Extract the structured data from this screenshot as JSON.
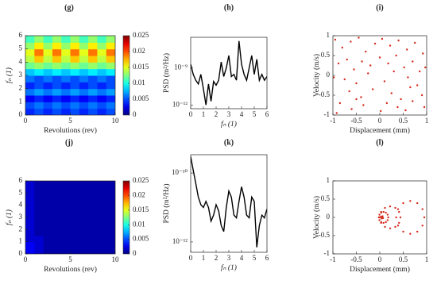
{
  "chart_data": [
    {
      "type": "heatmap",
      "title": "(g)",
      "xlabel": "Revolutions (rev)",
      "ylabel": "fₙ (1)",
      "xlim": [
        0,
        10
      ],
      "xticks": [
        0,
        5,
        10
      ],
      "ylim": [
        0,
        6
      ],
      "yticks": [
        0,
        1,
        2,
        3,
        4,
        5,
        6
      ],
      "x": [
        0.5,
        1.5,
        2.5,
        3.5,
        4.5,
        5.5,
        6.5,
        7.5,
        8.5,
        9.5
      ],
      "y": [
        0.25,
        0.75,
        1.25,
        1.75,
        2.25,
        2.75,
        3.25,
        3.75,
        4.25,
        4.75,
        5.25,
        5.75
      ],
      "z": [
        [
          0.004,
          0.005,
          0.004,
          0.005,
          0.004,
          0.005,
          0.004,
          0.005,
          0.004,
          0.005
        ],
        [
          0.005,
          0.006,
          0.005,
          0.006,
          0.005,
          0.006,
          0.005,
          0.006,
          0.005,
          0.006
        ],
        [
          0.003,
          0.004,
          0.003,
          0.004,
          0.003,
          0.004,
          0.003,
          0.004,
          0.003,
          0.004
        ],
        [
          0.006,
          0.007,
          0.006,
          0.007,
          0.006,
          0.007,
          0.006,
          0.007,
          0.006,
          0.007
        ],
        [
          0.004,
          0.005,
          0.004,
          0.005,
          0.004,
          0.005,
          0.004,
          0.005,
          0.004,
          0.005
        ],
        [
          0.006,
          0.005,
          0.006,
          0.005,
          0.006,
          0.005,
          0.006,
          0.005,
          0.006,
          0.005
        ],
        [
          0.008,
          0.009,
          0.008,
          0.009,
          0.008,
          0.009,
          0.008,
          0.009,
          0.008,
          0.009
        ],
        [
          0.012,
          0.013,
          0.012,
          0.013,
          0.012,
          0.013,
          0.012,
          0.013,
          0.012,
          0.013
        ],
        [
          0.014,
          0.017,
          0.014,
          0.017,
          0.014,
          0.017,
          0.014,
          0.017,
          0.014,
          0.017
        ],
        [
          0.015,
          0.019,
          0.015,
          0.019,
          0.015,
          0.019,
          0.015,
          0.019,
          0.015,
          0.019
        ],
        [
          0.013,
          0.016,
          0.013,
          0.016,
          0.013,
          0.016,
          0.013,
          0.016,
          0.013,
          0.016
        ],
        [
          0.011,
          0.013,
          0.011,
          0.013,
          0.011,
          0.013,
          0.011,
          0.013,
          0.011,
          0.013
        ]
      ],
      "clim": [
        0,
        0.025
      ],
      "cticks": [
        0,
        0.005,
        0.01,
        0.015,
        0.02,
        0.025
      ]
    },
    {
      "type": "line",
      "title": "(h)",
      "xlabel": "fₙ (1)",
      "ylabel": "PSD (m²/Hz)",
      "log_y": true,
      "color": "#000000",
      "xlim": [
        0,
        6
      ],
      "xticks": [
        0,
        1,
        2,
        3,
        4,
        5,
        6
      ],
      "ylim": [
        5e-13,
        3e-07
      ],
      "yticks": [
        {
          "value": 1e-12,
          "label": "10⁻¹²"
        },
        {
          "value": 1e-09,
          "label": "10⁻⁹"
        }
      ],
      "x": [
        0,
        0.2,
        0.4,
        0.6,
        0.8,
        1,
        1.2,
        1.4,
        1.6,
        1.8,
        2,
        2.2,
        2.4,
        2.6,
        2.8,
        3,
        3.2,
        3.4,
        3.6,
        3.8,
        4,
        4.2,
        4.4,
        4.6,
        4.8,
        5,
        5.2,
        5.4,
        5.6,
        5.8,
        6
      ],
      "values": [
        2e-09,
        3e-10,
        1e-10,
        5e-11,
        3e-10,
        2e-11,
        1e-12,
        5e-11,
        2e-12,
        8e-11,
        4e-11,
        1e-10,
        3e-09,
        2e-10,
        1e-09,
        1e-08,
        2e-10,
        3e-10,
        1e-10,
        1.5e-07,
        2e-09,
        3e-10,
        1e-10,
        1e-09,
        1e-08,
        3e-10,
        5e-09,
        1e-10,
        3e-10,
        1e-10,
        2e-10
      ]
    },
    {
      "type": "scatter",
      "title": "(i)",
      "xlabel": "Displacement (mm)",
      "ylabel": "Velocity (m/s)",
      "color": "#d62a1e",
      "xlim": [
        -1,
        1
      ],
      "xticks": [
        -1,
        -0.5,
        0,
        0.5,
        1
      ],
      "ylim": [
        -1,
        1
      ],
      "yticks": [
        -1,
        -0.5,
        0,
        0.5,
        1
      ],
      "x": [
        -0.95,
        -0.8,
        -0.62,
        -0.45,
        -0.3,
        -0.1,
        0.05,
        0.22,
        0.4,
        0.58,
        0.75,
        0.92,
        -0.88,
        -0.7,
        -0.55,
        -0.38,
        -0.2,
        0,
        0.18,
        0.35,
        0.52,
        0.7,
        0.85,
        -0.98,
        -0.75,
        -0.5,
        -0.25,
        0.1,
        0.3,
        0.6,
        0.8,
        0.97,
        -0.65,
        -0.4,
        -0.15,
        0.25,
        0.45,
        0.65,
        0.9,
        -0.85,
        -0.6,
        -0.35,
        0.02,
        0.38,
        0.7,
        -0.92,
        -0.5,
        0.15,
        0.55,
        0.95
      ],
      "y": [
        0.9,
        0.7,
        0.85,
        0.95,
        0.6,
        0.8,
        0.92,
        0.75,
        0.88,
        0.65,
        0.82,
        0.55,
        0.3,
        0.4,
        0.15,
        0.35,
        0.25,
        0.45,
        0.3,
        0.5,
        0.2,
        0.35,
        0.1,
        -0.05,
        -0.1,
        -0.2,
        0.05,
        -0.15,
        0.1,
        -0.05,
        -0.25,
        0.2,
        -0.4,
        -0.55,
        -0.35,
        -0.45,
        -0.6,
        -0.3,
        -0.5,
        -0.7,
        -0.85,
        -0.75,
        -0.9,
        -0.8,
        -0.65,
        -0.95,
        -0.6,
        -0.7,
        -0.88,
        -0.8
      ]
    },
    {
      "type": "heatmap",
      "title": "(j)",
      "xlabel": "Revolutions (rev)",
      "ylabel": "fₙ (1)",
      "xlim": [
        0,
        10
      ],
      "xticks": [
        0,
        5,
        10
      ],
      "ylim": [
        0,
        6
      ],
      "yticks": [
        0,
        1,
        2,
        3,
        4,
        5,
        6
      ],
      "x": [
        0.5,
        1.5,
        2.5,
        3.5,
        4.5,
        5.5,
        6.5,
        7.5,
        8.5,
        9.5
      ],
      "y": [
        0.25,
        0.75,
        1.25,
        1.75,
        2.25,
        2.75,
        3.25,
        3.75,
        4.25,
        4.75,
        5.25,
        5.75
      ],
      "z": [
        [
          0.003,
          0.002,
          0.001,
          0.001,
          0.001,
          0.001,
          0.001,
          0.001,
          0.001,
          0.001
        ],
        [
          0.003,
          0.002,
          0.001,
          0.001,
          0.001,
          0.001,
          0.001,
          0.001,
          0.001,
          0.001
        ],
        [
          0.002,
          0.002,
          0.001,
          0.001,
          0.001,
          0.001,
          0.001,
          0.001,
          0.001,
          0.001
        ],
        [
          0.002,
          0.001,
          0.001,
          0.001,
          0.001,
          0.001,
          0.001,
          0.001,
          0.001,
          0.001
        ],
        [
          0.002,
          0.001,
          0.001,
          0.001,
          0.001,
          0.001,
          0.001,
          0.001,
          0.001,
          0.001
        ],
        [
          0.002,
          0.001,
          0.001,
          0.001,
          0.001,
          0.001,
          0.001,
          0.001,
          0.001,
          0.001
        ],
        [
          0.002,
          0.001,
          0.001,
          0.001,
          0.001,
          0.001,
          0.001,
          0.001,
          0.001,
          0.001
        ],
        [
          0.002,
          0.001,
          0.001,
          0.001,
          0.001,
          0.001,
          0.001,
          0.001,
          0.001,
          0.001
        ],
        [
          0.002,
          0.001,
          0.001,
          0.001,
          0.001,
          0.001,
          0.001,
          0.001,
          0.001,
          0.001
        ],
        [
          0.002,
          0.001,
          0.001,
          0.001,
          0.001,
          0.001,
          0.001,
          0.001,
          0.001,
          0.001
        ],
        [
          0.002,
          0.001,
          0.001,
          0.001,
          0.001,
          0.001,
          0.001,
          0.001,
          0.001,
          0.001
        ],
        [
          0.002,
          0.001,
          0.001,
          0.001,
          0.001,
          0.001,
          0.001,
          0.001,
          0.001,
          0.001
        ]
      ],
      "clim": [
        0,
        0.025
      ],
      "cticks": [
        0,
        0.005,
        0.01,
        0.015,
        0.02,
        0.025
      ]
    },
    {
      "type": "line",
      "title": "(k)",
      "xlabel": "fₙ (1)",
      "ylabel": "PSD (m²/Hz)",
      "log_y": true,
      "color": "#000000",
      "xlim": [
        0,
        6
      ],
      "xticks": [
        0,
        1,
        2,
        3,
        4,
        5,
        6
      ],
      "ylim": [
        5e-13,
        3.4e-10
      ],
      "yticks": [
        {
          "value": 1e-12,
          "label": "10⁻¹²"
        },
        {
          "value": 1e-10,
          "label": "10⁻¹⁰"
        }
      ],
      "x": [
        0,
        0.2,
        0.4,
        0.6,
        0.8,
        1,
        1.2,
        1.4,
        1.6,
        1.8,
        2,
        2.2,
        2.4,
        2.6,
        2.8,
        3,
        3.2,
        3.4,
        3.6,
        3.8,
        4,
        4.2,
        4.4,
        4.6,
        4.8,
        5,
        5.2,
        5.4,
        5.6,
        5.8,
        6
      ],
      "values": [
        3e-10,
        1.2e-10,
        5e-11,
        2e-11,
        1.2e-11,
        1e-11,
        1.5e-11,
        1e-11,
        4e-12,
        6e-12,
        1.2e-11,
        8e-12,
        3e-12,
        2e-12,
        1e-11,
        3e-11,
        2e-11,
        6e-12,
        5e-12,
        1.5e-11,
        4e-11,
        2e-11,
        6e-12,
        5e-12,
        2e-11,
        1.5e-11,
        7e-13,
        3e-12,
        6e-12,
        5e-12,
        9e-12
      ]
    },
    {
      "type": "scatter",
      "title": "(l)",
      "xlabel": "Displacement (mm)",
      "ylabel": "Velocity (m/s)",
      "color": "#d62a1e",
      "xlim": [
        -1,
        1
      ],
      "xticks": [
        -1,
        -0.5,
        0,
        0.5,
        1
      ],
      "ylim": [
        -1,
        1
      ],
      "yticks": [
        -1,
        -0.5,
        0,
        0.5,
        1
      ],
      "x": [
        0.18,
        0.167,
        0.13,
        0.08,
        0.03,
        -0.007,
        -0.02,
        -0.007,
        0.03,
        0.08,
        0.13,
        0.167,
        0.44,
        0.411,
        0.33,
        0.22,
        0.11,
        0.029,
        0,
        0.029,
        0.11,
        0.22,
        0.33,
        0.411,
        0.95,
        0.91,
        0.8,
        0.65,
        0.5,
        0.39,
        0.35,
        0.39,
        0.5,
        0.65,
        0.8,
        0.91,
        0.05,
        0.03,
        0.07,
        0.04,
        0.06
      ],
      "y": [
        0,
        0.075,
        0.13,
        0.15,
        0.13,
        0.075,
        0,
        -0.075,
        -0.13,
        -0.15,
        -0.13,
        -0.075,
        0,
        0.15,
        0.26,
        0.3,
        0.26,
        0.15,
        0,
        -0.15,
        -0.26,
        -0.3,
        -0.26,
        -0.15,
        0,
        0.225,
        0.39,
        0.45,
        0.39,
        0.225,
        0,
        -0.225,
        -0.39,
        -0.45,
        -0.39,
        -0.225,
        0,
        0.02,
        -0.02,
        -0.03,
        0.03
      ]
    }
  ]
}
